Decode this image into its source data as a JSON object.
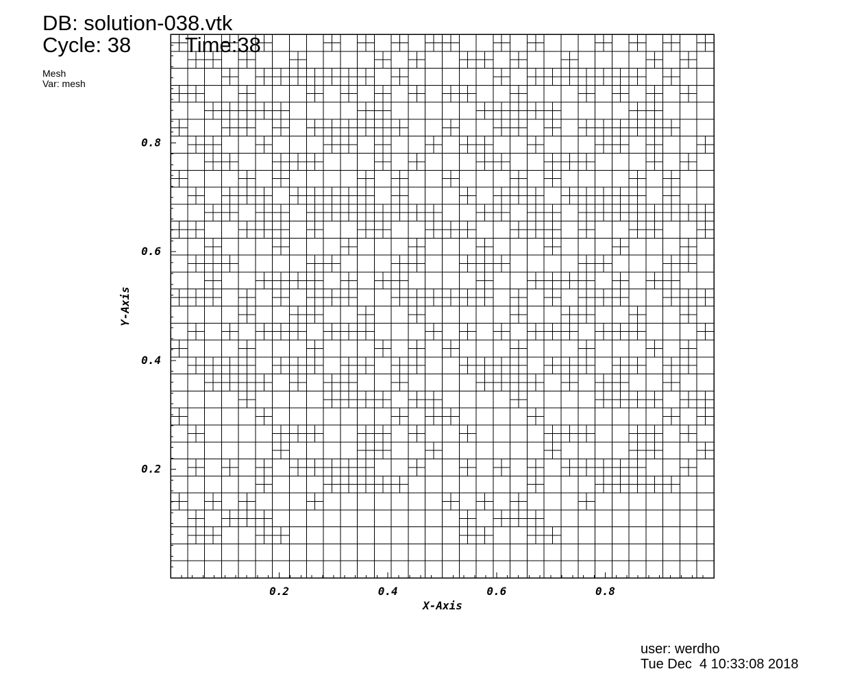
{
  "header": {
    "db": "DB: solution-038.vtk",
    "cycle": "Cycle: 38",
    "time": "Time:38",
    "plot_type": "Mesh",
    "variable": "Var: mesh"
  },
  "footer": {
    "user": "user: werdho",
    "date": "Tue Dec  4 10:33:08 2018"
  },
  "axes": {
    "xlabel": "X-Axis",
    "ylabel": "Y-Axis",
    "xlim": [
      0,
      1
    ],
    "ylim": [
      0,
      1
    ],
    "xticks": [
      "0.2",
      "0.4",
      "0.6",
      "0.8"
    ],
    "yticks": [
      "0.2",
      "0.4",
      "0.6",
      "0.8"
    ]
  },
  "mesh": {
    "type": "adaptive quadtree",
    "base_level": 5,
    "line_color": "#000000",
    "refined_cells_level6": [
      [
        1,
        2
      ],
      [
        2,
        2
      ],
      [
        5,
        2
      ],
      [
        6,
        2
      ],
      [
        1,
        3
      ],
      [
        3,
        3
      ],
      [
        4,
        3
      ],
      [
        5,
        3
      ],
      [
        0,
        4
      ],
      [
        2,
        4
      ],
      [
        4,
        4
      ],
      [
        8,
        4
      ],
      [
        5,
        5
      ],
      [
        9,
        5
      ],
      [
        10,
        5
      ],
      [
        11,
        5
      ],
      [
        12,
        5
      ],
      [
        13,
        5
      ],
      [
        1,
        6
      ],
      [
        3,
        6
      ],
      [
        5,
        6
      ],
      [
        7,
        6
      ],
      [
        8,
        6
      ],
      [
        9,
        6
      ],
      [
        10,
        6
      ],
      [
        11,
        6
      ],
      [
        14,
        6
      ],
      [
        6,
        7
      ],
      [
        11,
        7
      ],
      [
        12,
        7
      ],
      [
        15,
        7
      ],
      [
        1,
        8
      ],
      [
        6,
        8
      ],
      [
        7,
        8
      ],
      [
        8,
        8
      ],
      [
        11,
        8
      ],
      [
        12,
        8
      ],
      [
        14,
        8
      ],
      [
        0,
        9
      ],
      [
        5,
        9
      ],
      [
        13,
        9
      ],
      [
        15,
        9
      ],
      [
        4,
        10
      ],
      [
        9,
        10
      ],
      [
        10,
        10
      ],
      [
        11,
        10
      ],
      [
        12,
        10
      ],
      [
        14,
        10
      ],
      [
        15,
        10
      ],
      [
        2,
        11
      ],
      [
        3,
        11
      ],
      [
        4,
        11
      ],
      [
        5,
        11
      ],
      [
        7,
        11
      ],
      [
        9,
        11
      ],
      [
        10,
        11
      ],
      [
        13,
        11
      ],
      [
        1,
        12
      ],
      [
        2,
        12
      ],
      [
        3,
        12
      ],
      [
        4,
        12
      ],
      [
        6,
        12
      ],
      [
        7,
        12
      ],
      [
        8,
        12
      ],
      [
        10,
        12
      ],
      [
        11,
        12
      ],
      [
        13,
        12
      ],
      [
        14,
        12
      ],
      [
        0,
        13
      ],
      [
        4,
        13
      ],
      [
        8,
        13
      ],
      [
        12,
        13
      ],
      [
        14,
        13
      ],
      [
        1,
        14
      ],
      [
        3,
        14
      ],
      [
        5,
        14
      ],
      [
        6,
        14
      ],
      [
        7,
        14
      ],
      [
        9,
        14
      ],
      [
        10,
        14
      ],
      [
        11,
        14
      ],
      [
        15,
        14
      ],
      [
        4,
        15
      ],
      [
        7,
        15
      ],
      [
        8,
        15
      ],
      [
        11,
        15
      ],
      [
        14,
        15
      ],
      [
        0,
        16
      ],
      [
        1,
        16
      ],
      [
        2,
        16
      ],
      [
        4,
        16
      ],
      [
        6,
        16
      ],
      [
        8,
        16
      ],
      [
        9,
        16
      ],
      [
        10,
        16
      ],
      [
        13,
        16
      ],
      [
        14,
        16
      ],
      [
        15,
        16
      ],
      [
        2,
        17
      ],
      [
        5,
        17
      ],
      [
        6,
        17
      ],
      [
        7,
        17
      ],
      [
        8,
        17
      ],
      [
        10,
        17
      ],
      [
        12,
        17
      ],
      [
        13,
        17
      ],
      [
        1,
        18
      ],
      [
        2,
        18
      ],
      [
        3,
        18
      ],
      [
        8,
        18
      ],
      [
        9,
        18
      ],
      [
        13,
        18
      ],
      [
        14,
        18
      ],
      [
        2,
        19
      ],
      [
        6,
        19
      ],
      [
        10,
        19
      ],
      [
        14,
        19
      ],
      [
        0,
        20
      ],
      [
        1,
        20
      ],
      [
        4,
        20
      ],
      [
        5,
        20
      ],
      [
        6,
        20
      ],
      [
        8,
        20
      ],
      [
        11,
        20
      ],
      [
        12,
        20
      ],
      [
        15,
        20
      ],
      [
        2,
        21
      ],
      [
        3,
        21
      ],
      [
        5,
        21
      ],
      [
        6,
        21
      ],
      [
        8,
        21
      ],
      [
        9,
        21
      ],
      [
        10,
        21
      ],
      [
        11,
        21
      ],
      [
        12,
        21
      ],
      [
        13,
        21
      ],
      [
        14,
        21
      ],
      [
        15,
        21
      ],
      [
        1,
        22
      ],
      [
        3,
        22
      ],
      [
        4,
        22
      ],
      [
        5,
        22
      ],
      [
        7,
        22
      ],
      [
        8,
        22
      ],
      [
        9,
        22
      ],
      [
        10,
        22
      ],
      [
        11,
        22
      ],
      [
        13,
        22
      ],
      [
        0,
        23
      ],
      [
        4,
        23
      ],
      [
        6,
        23
      ],
      [
        11,
        23
      ],
      [
        13,
        23
      ],
      [
        2,
        24
      ],
      [
        3,
        24
      ],
      [
        6,
        24
      ],
      [
        7,
        24
      ],
      [
        8,
        24
      ],
      [
        12,
        24
      ],
      [
        14,
        24
      ],
      [
        1,
        25
      ],
      [
        2,
        25
      ],
      [
        5,
        25
      ],
      [
        9,
        25
      ],
      [
        10,
        25
      ],
      [
        12,
        25
      ],
      [
        15,
        25
      ],
      [
        0,
        26
      ],
      [
        3,
        26
      ],
      [
        4,
        26
      ],
      [
        6,
        26
      ],
      [
        8,
        26
      ],
      [
        9,
        26
      ],
      [
        10,
        26
      ],
      [
        11,
        26
      ],
      [
        12,
        26
      ],
      [
        13,
        26
      ],
      [
        2,
        27
      ],
      [
        3,
        27
      ],
      [
        4,
        27
      ],
      [
        5,
        27
      ],
      [
        6,
        27
      ],
      [
        11,
        27
      ],
      [
        12,
        27
      ],
      [
        0,
        28
      ],
      [
        1,
        28
      ],
      [
        4,
        28
      ],
      [
        8,
        28
      ],
      [
        10,
        28
      ],
      [
        12,
        28
      ],
      [
        14,
        28
      ],
      [
        3,
        29
      ],
      [
        5,
        29
      ],
      [
        6,
        29
      ],
      [
        7,
        29
      ],
      [
        8,
        29
      ],
      [
        9,
        29
      ],
      [
        10,
        29
      ],
      [
        11,
        29
      ],
      [
        13,
        29
      ],
      [
        1,
        30
      ],
      [
        2,
        30
      ],
      [
        4,
        30
      ],
      [
        7,
        30
      ],
      [
        12,
        30
      ],
      [
        14,
        30
      ],
      [
        0,
        31
      ],
      [
        3,
        31
      ],
      [
        5,
        31
      ],
      [
        9,
        31
      ],
      [
        11,
        31
      ],
      [
        13,
        31
      ],
      [
        15,
        31
      ]
    ]
  }
}
